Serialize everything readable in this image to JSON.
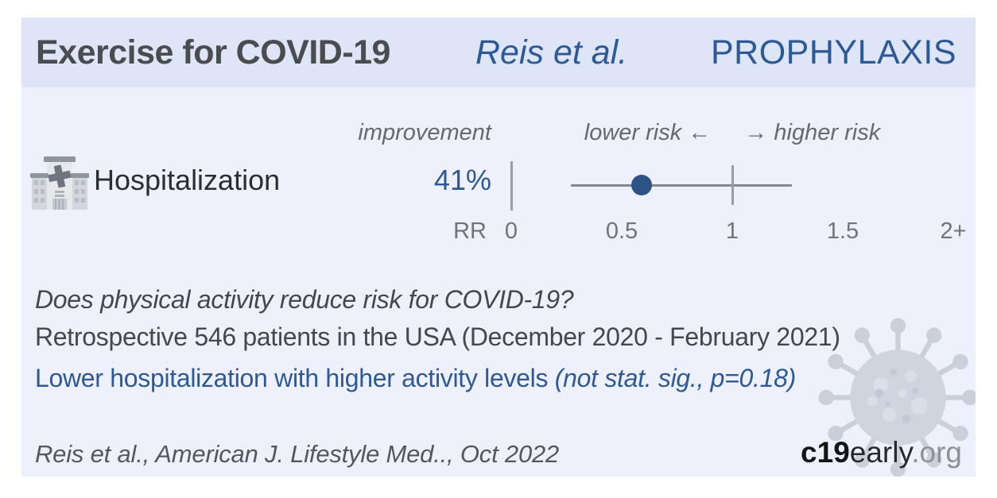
{
  "header": {
    "title": "Exercise for COVID-19",
    "author": "Reis et al.",
    "stage": "PROPHYLAXIS"
  },
  "columns": {
    "improvement": "improvement",
    "direction_left": "lower risk ←",
    "direction_right": "→ higher risk"
  },
  "chart_data": {
    "type": "scatter",
    "subtype": "forest-plot",
    "title": "Exercise for COVID-19, Reis et al., PROPHYLAXIS",
    "xlabel": "RR",
    "xlim": [
      0,
      2
    ],
    "x_ticks": [
      0,
      0.5,
      1,
      1.5,
      2
    ],
    "x_tick_labels": [
      "0",
      "0.5",
      "1",
      "1.5",
      "2+"
    ],
    "reference_line_x": 1,
    "direction_annotation": "lower risk ← → higher risk",
    "grid": false,
    "legend": false,
    "points": [
      {
        "label": "Hospitalization",
        "improvement": "41%",
        "rr": 0.59,
        "ci_lower": 0.27,
        "ci_upper": 1.27
      }
    ]
  },
  "summary": {
    "question": "Does physical activity reduce risk for COVID-19?",
    "study": "Retrospective 546 patients in the USA (December 2020 - February 2021)",
    "finding": "Lower hospitalization with higher activity levels",
    "finding_note": "(not stat. sig., p=0.18)"
  },
  "footer": {
    "citation": "Reis et al., American J. Lifestyle Med.., Oct 2022",
    "brand_bold": "c19",
    "brand_mid": "early",
    "brand_suffix": ".org"
  },
  "colors": {
    "accent_blue": "#2d5a96",
    "dot_blue": "#2d5386",
    "header_bg": "#dde5f7",
    "card_bg": "#eef1fb"
  }
}
